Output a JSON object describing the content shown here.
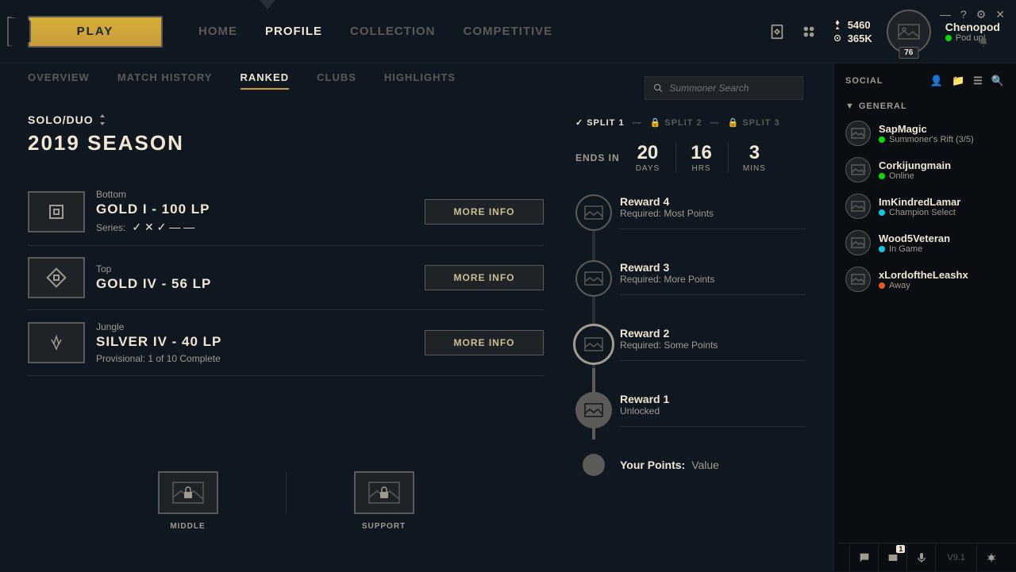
{
  "play_button": "PLAY",
  "nav": {
    "home": "HOME",
    "profile": "PROFILE",
    "collection": "COLLECTION",
    "competitive": "COMPETITIVE"
  },
  "currency1": "5460",
  "currency2": "365K",
  "user": {
    "name": "Chenopod",
    "status": "Pod up!",
    "level": "76",
    "status_color": "#0acbe6"
  },
  "subnav": {
    "overview": "OVERVIEW",
    "history": "MATCH HISTORY",
    "ranked": "RANKED",
    "clubs": "CLUBS",
    "highlights": "HIGHLIGHTS"
  },
  "search_placeholder": "Summoner Search",
  "queue": "SOLO/DUO",
  "season": "2019 SEASON",
  "ranks": [
    {
      "role": "Bottom",
      "title": "GOLD I - 100 LP",
      "series_label": "Series:",
      "series": [
        "check",
        "x",
        "check",
        "dash",
        "dash"
      ],
      "btn": "MORE INFO"
    },
    {
      "role": "Top",
      "title": "GOLD IV - 56 LP",
      "btn": "MORE INFO"
    },
    {
      "role": "Jungle",
      "title": "SILVER IV - 40 LP",
      "sub": "Provisional: 1 of 10 Complete",
      "btn": "MORE INFO"
    }
  ],
  "unranked": [
    {
      "label": "MIDDLE"
    },
    {
      "label": "SUPPORT"
    }
  ],
  "splits": {
    "s1": "SPLIT 1",
    "s2": "SPLIT 2",
    "s3": "SPLIT 3"
  },
  "countdown": {
    "label": "ENDS IN",
    "d": "20",
    "du": "DAYS",
    "h": "16",
    "hu": "HRS",
    "m": "3",
    "mu": "MINS"
  },
  "rewards": [
    {
      "t": "Reward 4",
      "s": "Required: Most Points"
    },
    {
      "t": "Reward 3",
      "s": "Required: More Points"
    },
    {
      "t": "Reward 2",
      "s": "Required: Some Points"
    },
    {
      "t": "Reward 1",
      "s": "Unlocked"
    }
  ],
  "points_label": "Your Points:",
  "points_value": "Value",
  "social_header": "SOCIAL",
  "social_group": "GENERAL",
  "friends": [
    {
      "n": "SapMagic",
      "s": "Summoner's Rift (3/5)",
      "c": "#09d809"
    },
    {
      "n": "Corkijungmain",
      "s": "Online",
      "c": "#09d809"
    },
    {
      "n": "ImKindredLamar",
      "s": "Champion Select",
      "c": "#0acbe6"
    },
    {
      "n": "Wood5Veteran",
      "s": "In Game",
      "c": "#0acbe6"
    },
    {
      "n": "xLordoftheLeashx",
      "s": "Away",
      "c": "#e65a24"
    }
  ],
  "version": "V9.1",
  "chat_badge": "1",
  "colors": {
    "green": "#09d809"
  }
}
